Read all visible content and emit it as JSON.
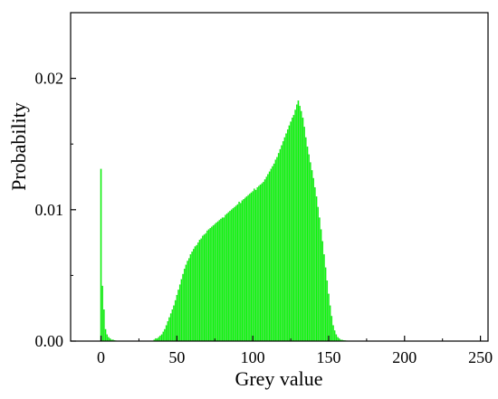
{
  "chart_data": {
    "type": "bar",
    "title": "",
    "xlabel": "Grey value",
    "ylabel": "Probability",
    "xlim": [
      -20,
      255
    ],
    "ylim": [
      0,
      0.025
    ],
    "x_ticks": [
      0,
      50,
      100,
      150,
      200,
      250
    ],
    "y_ticks": [
      0.0,
      0.01,
      0.02
    ],
    "x_tick_labels": [
      "0",
      "50",
      "100",
      "150",
      "200",
      "250"
    ],
    "y_tick_labels": [
      "0.00",
      "0.01",
      "0.02"
    ],
    "grid": false,
    "legend": "none",
    "bar_color": "#00ff00",
    "bar_edge_color": "#33cc33",
    "series": [
      {
        "x": [
          0,
          1,
          2,
          3,
          4,
          5,
          6,
          7,
          8,
          9,
          10,
          35,
          36,
          37,
          38,
          39,
          40,
          41,
          42,
          43,
          44,
          45,
          46,
          47,
          48,
          49,
          50,
          51,
          52,
          53,
          54,
          55,
          56,
          57,
          58,
          59,
          60,
          61,
          62,
          63,
          64,
          65,
          66,
          67,
          68,
          69,
          70,
          71,
          72,
          73,
          74,
          75,
          76,
          77,
          78,
          79,
          80,
          81,
          82,
          83,
          84,
          85,
          86,
          87,
          88,
          89,
          90,
          91,
          92,
          93,
          94,
          95,
          96,
          97,
          98,
          99,
          100,
          101,
          102,
          103,
          104,
          105,
          106,
          107,
          108,
          109,
          110,
          111,
          112,
          113,
          114,
          115,
          116,
          117,
          118,
          119,
          120,
          121,
          122,
          123,
          124,
          125,
          126,
          127,
          128,
          129,
          130,
          131,
          132,
          133,
          134,
          135,
          136,
          137,
          138,
          139,
          140,
          141,
          142,
          143,
          144,
          145,
          146,
          147,
          148,
          149,
          150,
          151,
          152,
          153,
          154,
          155,
          156,
          157,
          158,
          159,
          160,
          161,
          162,
          163,
          164,
          165
        ],
        "values": [
          0.0131,
          0.0042,
          0.0024,
          0.0009,
          0.0005,
          0.0003,
          0.0002,
          0.0001,
          0.0001,
          5e-05,
          3e-05,
          0.0001,
          0.0002,
          0.0002,
          0.0003,
          0.0004,
          0.0005,
          0.0007,
          0.0009,
          0.0012,
          0.0015,
          0.0018,
          0.0021,
          0.0024,
          0.0027,
          0.0031,
          0.0035,
          0.0039,
          0.0043,
          0.0047,
          0.0051,
          0.0055,
          0.0058,
          0.0061,
          0.0063,
          0.0066,
          0.0068,
          0.007,
          0.0072,
          0.0073,
          0.0075,
          0.0077,
          0.0078,
          0.008,
          0.0081,
          0.0082,
          0.0084,
          0.0085,
          0.0086,
          0.0087,
          0.0088,
          0.0089,
          0.009,
          0.0091,
          0.0092,
          0.0093,
          0.0094,
          0.0094,
          0.0096,
          0.0097,
          0.0098,
          0.0099,
          0.01,
          0.0101,
          0.0102,
          0.0103,
          0.0104,
          0.0106,
          0.0105,
          0.0107,
          0.0108,
          0.0109,
          0.011,
          0.0111,
          0.0112,
          0.0113,
          0.0114,
          0.0116,
          0.0115,
          0.0117,
          0.0118,
          0.0119,
          0.012,
          0.0121,
          0.0123,
          0.0125,
          0.0127,
          0.0129,
          0.0131,
          0.0133,
          0.0135,
          0.0138,
          0.014,
          0.0143,
          0.0146,
          0.0149,
          0.0152,
          0.0155,
          0.0158,
          0.0161,
          0.0164,
          0.0167,
          0.017,
          0.0172,
          0.0176,
          0.018,
          0.0183,
          0.0179,
          0.0175,
          0.017,
          0.0163,
          0.0155,
          0.0148,
          0.0142,
          0.0136,
          0.013,
          0.0124,
          0.0117,
          0.011,
          0.0102,
          0.0094,
          0.0085,
          0.0076,
          0.0066,
          0.0056,
          0.0046,
          0.0036,
          0.0027,
          0.0019,
          0.0012,
          0.0008,
          0.0005,
          0.0003,
          0.0002,
          0.0001,
          8e-05,
          5e-05,
          4e-05,
          3e-05,
          2e-05,
          2e-05,
          1e-05
        ]
      }
    ]
  }
}
